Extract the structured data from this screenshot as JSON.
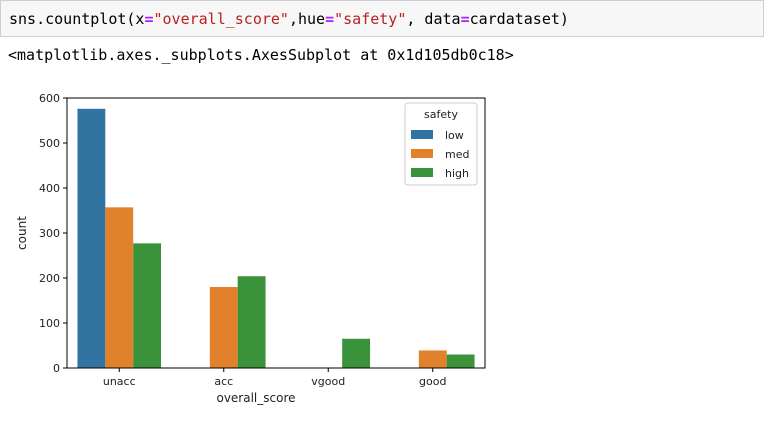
{
  "code_cell": {
    "prefix": "sns.countplot(x",
    "eq1": "=",
    "x_value": "\"overall_score\"",
    "mid1": ",hue",
    "eq2": "=",
    "hue_value": "\"safety\"",
    "mid2": ", data",
    "eq3": "=",
    "data_value": "cardataset",
    "suffix": ")"
  },
  "output": {
    "text": "<matplotlib.axes._subplots.AxesSubplot at 0x1d105db0c18>"
  },
  "chart_data": {
    "type": "bar",
    "xlabel": "overall_score",
    "ylabel": "count",
    "categories": [
      "unacc",
      "acc",
      "vgood",
      "good"
    ],
    "series": [
      {
        "name": "low",
        "color": "#3274a1",
        "values": [
          576,
          0,
          0,
          0
        ]
      },
      {
        "name": "med",
        "color": "#e1812c",
        "values": [
          357,
          180,
          0,
          39
        ]
      },
      {
        "name": "high",
        "color": "#3a923a",
        "values": [
          277,
          204,
          65,
          30
        ]
      }
    ],
    "ylim": [
      0,
      600
    ],
    "yticks": [
      "0",
      "100",
      "200",
      "300",
      "400",
      "500",
      "600"
    ],
    "legend": {
      "title": "safety",
      "placement": "top-right"
    },
    "grid": false
  }
}
